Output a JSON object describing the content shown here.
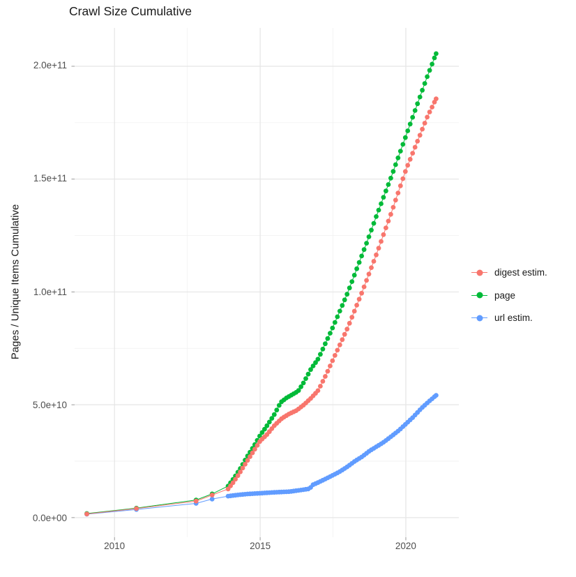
{
  "title": "Crawl Size Cumulative",
  "y_axis": {
    "title": "Pages / Unique Items Cumulative",
    "tick_labels": [
      "2.0e+11",
      "1.5e+11",
      "1.0e+11",
      "5.0e+10",
      "0.0e+00"
    ],
    "tick_values": [
      200000000000.0,
      150000000000.0,
      100000000000.0,
      50000000000.0,
      0
    ]
  },
  "x_axis": {
    "tick_labels": [
      "2010",
      "2015",
      "2020"
    ],
    "tick_values": [
      2010,
      2015,
      2020
    ]
  },
  "legend": {
    "position": "right",
    "items": [
      {
        "label": "digest estim.",
        "color": "#F8766D"
      },
      {
        "label": "page",
        "color": "#00BA38"
      },
      {
        "label": "url estim.",
        "color": "#619CFF"
      }
    ]
  },
  "colors": {
    "background": "#FFFFFF",
    "grid_major": "#E5E5E5",
    "grid_minor": "#F2F2F2",
    "tick": "#999999",
    "axis_text": "#4D4D4D",
    "text": "#1A1A1A"
  },
  "chart_data": {
    "type": "scatter",
    "title": "Crawl Size Cumulative",
    "xlabel": "",
    "ylabel": "Pages / Unique Items Cumulative",
    "grid": true,
    "legend_position": "right",
    "xlim": [
      2008.63,
      2021.82
    ],
    "ylim": [
      -8700000000.0,
      217000000000.0
    ],
    "x_ticks": [
      2010,
      2015,
      2020
    ],
    "x_minor_ticks": [
      2012.5,
      2017.5
    ],
    "y_ticks": [
      0,
      50000000000.0,
      100000000000.0,
      150000000000.0,
      200000000000.0
    ],
    "y_minor_ticks": [
      25000000000.0,
      75000000000.0,
      125000000000.0,
      175000000000.0
    ],
    "marker_monthly_from": 2013.9,
    "marker_step_years": 0.08333,
    "series": [
      {
        "name": "digest estim.",
        "color": "#F8766D",
        "points": [
          [
            2009.05,
            1600000000.0
          ],
          [
            2010.75,
            4000000000.0
          ],
          [
            2012.8,
            7300000000.0
          ],
          [
            2013.35,
            10000000000.0
          ],
          [
            2013.9,
            12700000000.0
          ],
          [
            2014.1,
            16000000000.0
          ],
          [
            2014.33,
            20500000000.0
          ],
          [
            2014.55,
            25000000000.0
          ],
          [
            2014.8,
            30000000000.0
          ],
          [
            2015.0,
            34000000000.0
          ],
          [
            2015.25,
            37000000000.0
          ],
          [
            2015.5,
            41000000000.0
          ],
          [
            2015.75,
            44000000000.0
          ],
          [
            2016.0,
            46000000000.0
          ],
          [
            2016.25,
            47500000000.0
          ],
          [
            2016.5,
            50000000000.0
          ],
          [
            2016.75,
            53000000000.0
          ],
          [
            2017.0,
            56500000000.0
          ],
          [
            2017.25,
            63000000000.0
          ],
          [
            2017.5,
            70000000000.0
          ],
          [
            2017.75,
            77000000000.0
          ],
          [
            2018.0,
            84000000000.0
          ],
          [
            2018.25,
            92000000000.0
          ],
          [
            2018.5,
            100000000000.0
          ],
          [
            2018.75,
            108500000000.0
          ],
          [
            2019.0,
            117000000000.0
          ],
          [
            2019.25,
            126000000000.0
          ],
          [
            2019.5,
            135000000000.0
          ],
          [
            2019.75,
            144500000000.0
          ],
          [
            2020.0,
            154000000000.0
          ],
          [
            2020.25,
            162000000000.0
          ],
          [
            2020.5,
            170000000000.0
          ],
          [
            2020.75,
            178000000000.0
          ],
          [
            2021.04,
            185600000000.0
          ]
        ]
      },
      {
        "name": "page",
        "color": "#00BA38",
        "points": [
          [
            2009.05,
            1800000000.0
          ],
          [
            2010.75,
            4200000000.0
          ],
          [
            2012.8,
            7800000000.0
          ],
          [
            2013.35,
            10500000000.0
          ],
          [
            2013.9,
            14000000000.0
          ],
          [
            2014.1,
            17500000000.0
          ],
          [
            2014.33,
            22000000000.0
          ],
          [
            2014.55,
            27000000000.0
          ],
          [
            2014.8,
            32000000000.0
          ],
          [
            2015.0,
            36500000000.0
          ],
          [
            2015.25,
            41000000000.0
          ],
          [
            2015.5,
            46000000000.0
          ],
          [
            2015.7,
            51000000000.0
          ],
          [
            2015.9,
            53000000000.0
          ],
          [
            2016.1,
            54500000000.0
          ],
          [
            2016.3,
            56000000000.0
          ],
          [
            2016.5,
            60000000000.0
          ],
          [
            2016.75,
            66000000000.0
          ],
          [
            2017.0,
            70500000000.0
          ],
          [
            2017.25,
            77500000000.0
          ],
          [
            2017.5,
            84500000000.0
          ],
          [
            2017.75,
            92000000000.0
          ],
          [
            2018.0,
            99500000000.0
          ],
          [
            2018.25,
            108000000000.0
          ],
          [
            2018.5,
            116500000000.0
          ],
          [
            2018.75,
            125000000000.0
          ],
          [
            2019.0,
            134000000000.0
          ],
          [
            2019.25,
            142500000000.0
          ],
          [
            2019.5,
            151000000000.0
          ],
          [
            2019.75,
            160000000000.0
          ],
          [
            2020.0,
            169000000000.0
          ],
          [
            2020.25,
            178000000000.0
          ],
          [
            2020.5,
            187000000000.0
          ],
          [
            2020.75,
            196000000000.0
          ],
          [
            2021.04,
            205600000000.0
          ]
        ]
      },
      {
        "name": "url estim.",
        "color": "#619CFF",
        "points": [
          [
            2009.05,
            1500000000.0
          ],
          [
            2010.75,
            3600000000.0
          ],
          [
            2012.8,
            6300000000.0
          ],
          [
            2013.35,
            8200000000.0
          ],
          [
            2013.9,
            9500000000.0
          ],
          [
            2014.2,
            10000000000.0
          ],
          [
            2014.6,
            10500000000.0
          ],
          [
            2015.0,
            10800000000.0
          ],
          [
            2015.5,
            11200000000.0
          ],
          [
            2016.0,
            11500000000.0
          ],
          [
            2016.4,
            12200000000.0
          ],
          [
            2016.7,
            12800000000.0
          ],
          [
            2016.8,
            14500000000.0
          ],
          [
            2017.0,
            15600000000.0
          ],
          [
            2017.25,
            17200000000.0
          ],
          [
            2017.5,
            18800000000.0
          ],
          [
            2017.75,
            20500000000.0
          ],
          [
            2018.0,
            22600000000.0
          ],
          [
            2018.25,
            25000000000.0
          ],
          [
            2018.5,
            27000000000.0
          ],
          [
            2018.75,
            29500000000.0
          ],
          [
            2019.0,
            31500000000.0
          ],
          [
            2019.25,
            33500000000.0
          ],
          [
            2019.5,
            36000000000.0
          ],
          [
            2019.75,
            38500000000.0
          ],
          [
            2020.0,
            41500000000.0
          ],
          [
            2020.25,
            44500000000.0
          ],
          [
            2020.5,
            48000000000.0
          ],
          [
            2020.75,
            51000000000.0
          ],
          [
            2021.04,
            54200000000.0
          ]
        ]
      }
    ]
  }
}
